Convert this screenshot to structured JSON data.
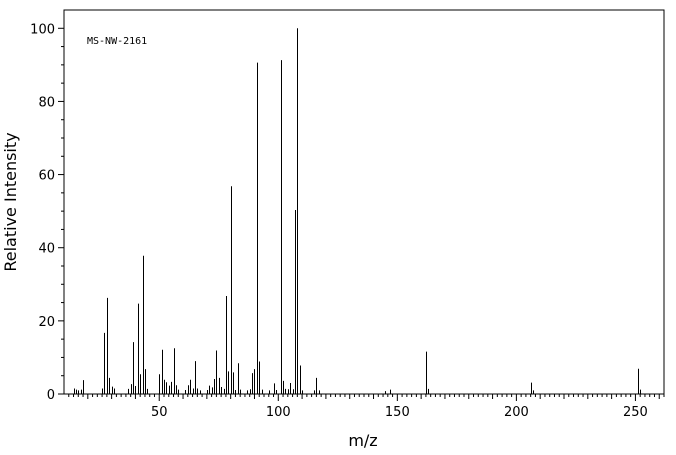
{
  "chart_data": {
    "type": "bar",
    "title": "",
    "annotation": "MS-NW-2161",
    "xlabel": "m/z",
    "ylabel": "Relative Intensity",
    "xlim": [
      10,
      262
    ],
    "ylim": [
      0,
      105
    ],
    "x_major_ticks": [
      50,
      100,
      150,
      200,
      250
    ],
    "x_tick_labels": [
      "50",
      "100",
      "150",
      "200",
      "250"
    ],
    "y_major_ticks": [
      0,
      20,
      40,
      60,
      80,
      100
    ],
    "y_tick_labels": [
      "0",
      "20",
      "40",
      "60",
      "80",
      "100"
    ],
    "grid": false,
    "legend": "none",
    "bar_color": "#000000",
    "peaks": [
      {
        "x": 14,
        "y": 1.5
      },
      {
        "x": 15,
        "y": 1.2
      },
      {
        "x": 16,
        "y": 1.0
      },
      {
        "x": 17,
        "y": 1.2
      },
      {
        "x": 18,
        "y": 3.8
      },
      {
        "x": 26,
        "y": 1.5
      },
      {
        "x": 27,
        "y": 16.7
      },
      {
        "x": 28,
        "y": 26.3
      },
      {
        "x": 29,
        "y": 4.4
      },
      {
        "x": 30,
        "y": 2.0
      },
      {
        "x": 31,
        "y": 1.5
      },
      {
        "x": 37,
        "y": 1.4
      },
      {
        "x": 38,
        "y": 2.7
      },
      {
        "x": 39,
        "y": 14.2
      },
      {
        "x": 40,
        "y": 2.2
      },
      {
        "x": 41,
        "y": 24.7
      },
      {
        "x": 42,
        "y": 5.4
      },
      {
        "x": 43,
        "y": 37.8
      },
      {
        "x": 44,
        "y": 6.8
      },
      {
        "x": 45,
        "y": 1.4
      },
      {
        "x": 50,
        "y": 5.4
      },
      {
        "x": 51,
        "y": 12.1
      },
      {
        "x": 52,
        "y": 3.9
      },
      {
        "x": 53,
        "y": 3.2
      },
      {
        "x": 54,
        "y": 2.3
      },
      {
        "x": 55,
        "y": 3.3
      },
      {
        "x": 56,
        "y": 12.5
      },
      {
        "x": 57,
        "y": 2.4
      },
      {
        "x": 58,
        "y": 1.2
      },
      {
        "x": 61,
        "y": 1.1
      },
      {
        "x": 62,
        "y": 2.4
      },
      {
        "x": 63,
        "y": 3.9
      },
      {
        "x": 64,
        "y": 1.5
      },
      {
        "x": 65,
        "y": 9.0
      },
      {
        "x": 66,
        "y": 1.5
      },
      {
        "x": 67,
        "y": 1.0
      },
      {
        "x": 70,
        "y": 1.1
      },
      {
        "x": 71,
        "y": 2.3
      },
      {
        "x": 72,
        "y": 1.8
      },
      {
        "x": 73,
        "y": 4.1
      },
      {
        "x": 74,
        "y": 11.9
      },
      {
        "x": 75,
        "y": 4.4
      },
      {
        "x": 76,
        "y": 1.9
      },
      {
        "x": 77,
        "y": 1.4
      },
      {
        "x": 78,
        "y": 26.8
      },
      {
        "x": 79,
        "y": 6.2
      },
      {
        "x": 80,
        "y": 56.8
      },
      {
        "x": 81,
        "y": 5.9
      },
      {
        "x": 82,
        "y": 1.1
      },
      {
        "x": 83,
        "y": 8.4
      },
      {
        "x": 84,
        "y": 1.2
      },
      {
        "x": 87,
        "y": 1.0
      },
      {
        "x": 88,
        "y": 1.3
      },
      {
        "x": 89,
        "y": 5.7
      },
      {
        "x": 90,
        "y": 6.8
      },
      {
        "x": 91,
        "y": 90.6
      },
      {
        "x": 92,
        "y": 8.9
      },
      {
        "x": 93,
        "y": 1.2
      },
      {
        "x": 96,
        "y": 1.0
      },
      {
        "x": 98,
        "y": 2.9
      },
      {
        "x": 99,
        "y": 1.1
      },
      {
        "x": 101,
        "y": 91.3
      },
      {
        "x": 102,
        "y": 3.6
      },
      {
        "x": 103,
        "y": 1.4
      },
      {
        "x": 104,
        "y": 1.3
      },
      {
        "x": 105,
        "y": 3.0
      },
      {
        "x": 106,
        "y": 1.3
      },
      {
        "x": 107,
        "y": 50.3
      },
      {
        "x": 108,
        "y": 100.0
      },
      {
        "x": 109,
        "y": 7.8
      },
      {
        "x": 110,
        "y": 1.0
      },
      {
        "x": 115,
        "y": 1.0
      },
      {
        "x": 116,
        "y": 4.4
      },
      {
        "x": 117,
        "y": 1.0
      },
      {
        "x": 145,
        "y": 0.8
      },
      {
        "x": 147,
        "y": 1.2
      },
      {
        "x": 162,
        "y": 11.6
      },
      {
        "x": 163,
        "y": 1.4
      },
      {
        "x": 206,
        "y": 3.1
      },
      {
        "x": 207,
        "y": 1.0
      },
      {
        "x": 251,
        "y": 6.9
      },
      {
        "x": 252,
        "y": 1.2
      }
    ]
  }
}
